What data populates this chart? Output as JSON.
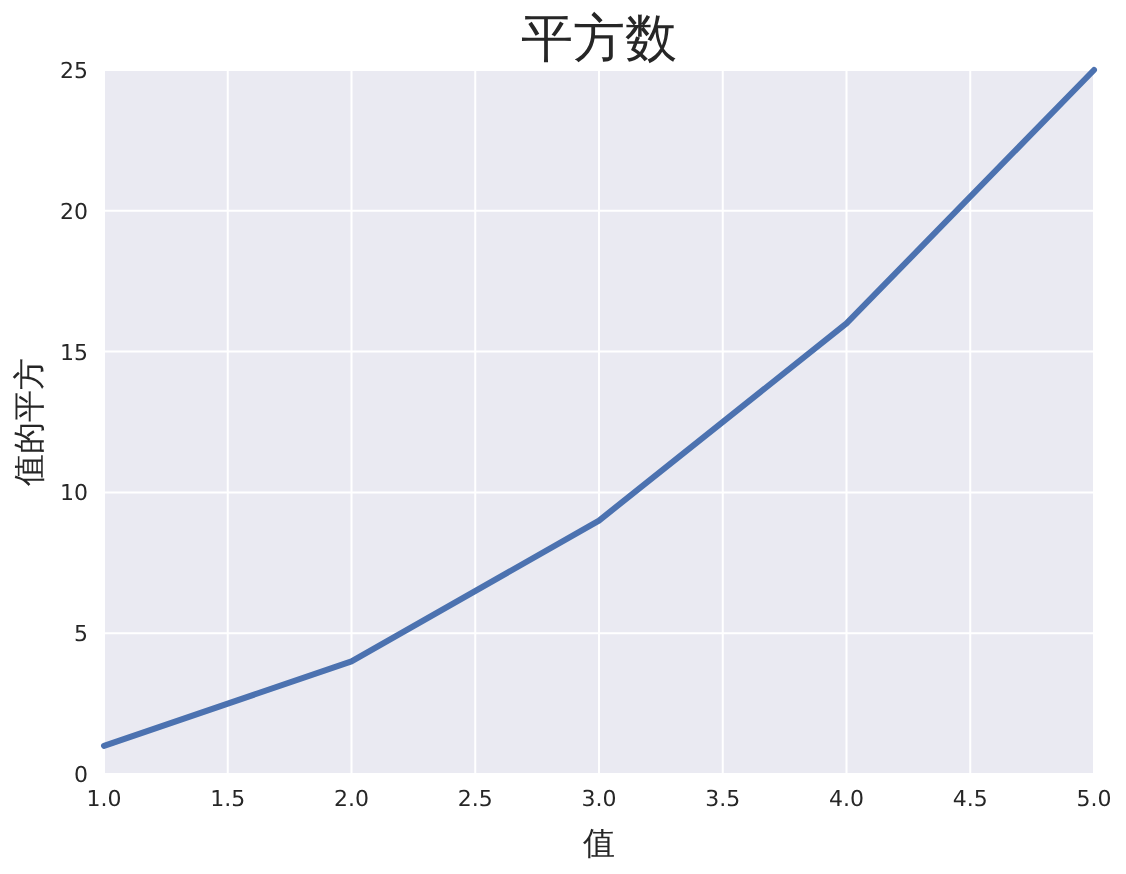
{
  "chart_data": {
    "type": "line",
    "title": "平方数",
    "xlabel": "值",
    "ylabel": "值的平方",
    "x": [
      1,
      2,
      3,
      4,
      5
    ],
    "series": [
      {
        "color": "#4c72b0",
        "values": [
          1,
          4,
          9,
          16,
          25
        ]
      }
    ],
    "xlim": [
      1,
      5
    ],
    "ylim": [
      0,
      25
    ],
    "xticks": [
      {
        "value": 1,
        "label": "1.0"
      },
      {
        "value": 1.5,
        "label": "1.5"
      },
      {
        "value": 2,
        "label": "2.0"
      },
      {
        "value": 2.5,
        "label": "2.5"
      },
      {
        "value": 3,
        "label": "3.0"
      },
      {
        "value": 3.5,
        "label": "3.5"
      },
      {
        "value": 4,
        "label": "4.0"
      },
      {
        "value": 4.5,
        "label": "4.5"
      },
      {
        "value": 5,
        "label": "5.0"
      }
    ],
    "yticks": [
      0,
      5,
      10,
      15,
      20,
      25
    ],
    "grid": true,
    "marker": "none",
    "line_style": "solid"
  }
}
